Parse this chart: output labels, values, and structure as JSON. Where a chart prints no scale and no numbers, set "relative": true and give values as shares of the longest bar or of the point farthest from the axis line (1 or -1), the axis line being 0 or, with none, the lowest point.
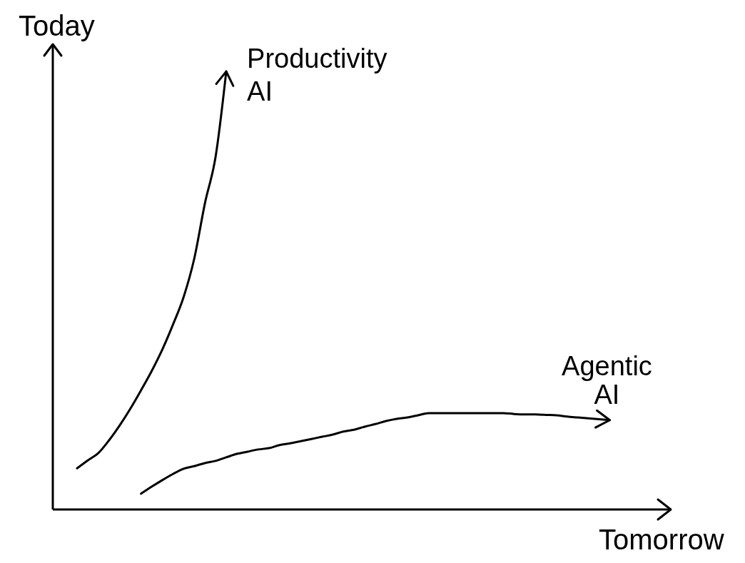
{
  "chart_data": {
    "type": "line",
    "xlabel": "Tomorrow",
    "ylabel": "Today",
    "relative": true,
    "categories": [
      null,
      null,
      null,
      null,
      null,
      null,
      null,
      null,
      null,
      null,
      null,
      null,
      null,
      null,
      null,
      null,
      null,
      null,
      null,
      null,
      null,
      null,
      null,
      null,
      null,
      null,
      null,
      null,
      null,
      null,
      null,
      null,
      null,
      null,
      null,
      null,
      null,
      null,
      null,
      null,
      null,
      null,
      null,
      null,
      null,
      null,
      null,
      null,
      null,
      null,
      null
    ],
    "series": [
      {
        "name": "Productivity AI",
        "color": "#000000",
        "values": [
          0.094,
          0.112,
          0.129,
          0.158,
          0.192,
          0.23,
          0.272,
          0.316,
          0.365,
          0.422,
          0.485,
          0.573,
          0.699,
          0.805,
          1.0,
          null,
          null,
          null,
          null,
          null,
          null,
          null,
          null,
          null,
          null,
          null,
          null,
          null,
          null,
          null,
          null,
          null,
          null,
          null,
          null,
          null,
          null,
          null,
          null,
          null,
          null,
          null,
          null,
          null,
          null,
          null,
          null,
          null,
          null,
          null,
          null
        ]
      },
      {
        "name": "Agentic AI",
        "color": "#000000",
        "values": [
          null,
          null,
          null,
          null,
          null,
          null,
          0.036,
          0.052,
          0.067,
          0.081,
          0.093,
          0.099,
          0.106,
          0.111,
          0.119,
          0.127,
          0.132,
          0.137,
          0.14,
          0.147,
          0.151,
          0.156,
          0.161,
          0.166,
          0.171,
          0.178,
          0.182,
          0.189,
          0.195,
          0.202,
          0.207,
          0.21,
          0.215,
          0.22,
          0.22,
          0.22,
          0.22,
          0.22,
          0.22,
          0.22,
          0.22,
          0.218,
          0.217,
          0.217,
          0.216,
          0.215,
          0.212,
          0.21,
          0.208,
          0.206,
          0.204
        ]
      }
    ]
  }
}
